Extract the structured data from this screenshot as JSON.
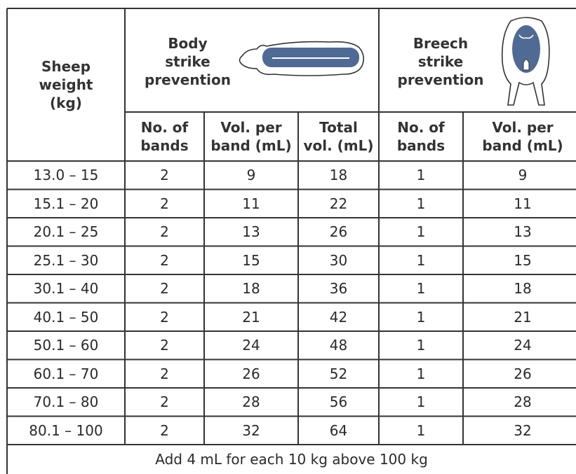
{
  "table": {
    "header": {
      "weight": "Sheep\nweight\n(kg)",
      "body": "Body\nstrike\nprevention",
      "breech": "Breech\nstrike\nprevention"
    },
    "columns": [
      "No. of\nbands",
      "Vol. per\nband (mL)",
      "Total\nvol. (mL)",
      "No. of\nbands",
      "Vol. per\nband (mL)"
    ],
    "rows": [
      [
        "13.0 – 15",
        2,
        9,
        18,
        1,
        9
      ],
      [
        "15.1 – 20",
        2,
        11,
        22,
        1,
        11
      ],
      [
        "20.1 – 25",
        2,
        13,
        26,
        1,
        13
      ],
      [
        "25.1 – 30",
        2,
        15,
        30,
        1,
        15
      ],
      [
        "30.1 – 40",
        2,
        18,
        36,
        1,
        18
      ],
      [
        "40.1 – 50",
        2,
        21,
        42,
        1,
        21
      ],
      [
        "50.1 – 60",
        2,
        24,
        48,
        1,
        24
      ],
      [
        "60.1 – 70",
        2,
        26,
        52,
        1,
        26
      ],
      [
        "70.1 – 80",
        2,
        28,
        56,
        1,
        28
      ],
      [
        "80.1 – 100",
        2,
        32,
        64,
        1,
        32
      ]
    ],
    "footer": "Add 4 mL for each 10 kg above 100 kg"
  }
}
